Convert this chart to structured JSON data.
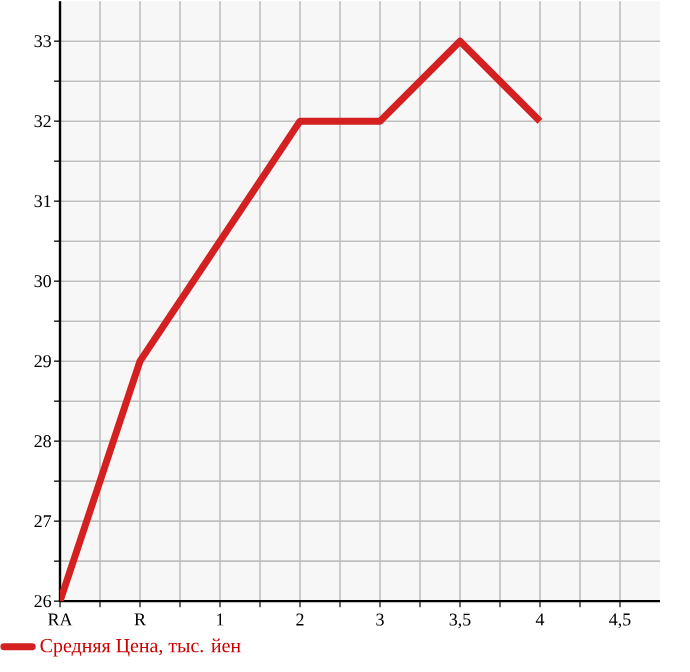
{
  "chart_data": {
    "type": "line",
    "categories": [
      "RA",
      "R",
      "1",
      "2",
      "3",
      "3,5",
      "4",
      "4,5"
    ],
    "series": [
      {
        "name": "Средняя Цена, тыс. йен",
        "color": "#d42020",
        "values": [
          26,
          29,
          30.5,
          32,
          32,
          33,
          32,
          null
        ]
      }
    ],
    "ylim": [
      26,
      33.5
    ],
    "yticks": [
      26,
      27,
      28,
      29,
      30,
      31,
      32,
      33
    ],
    "grid": true,
    "legend": "bottom",
    "marker": "none",
    "line_style": "solid"
  }
}
